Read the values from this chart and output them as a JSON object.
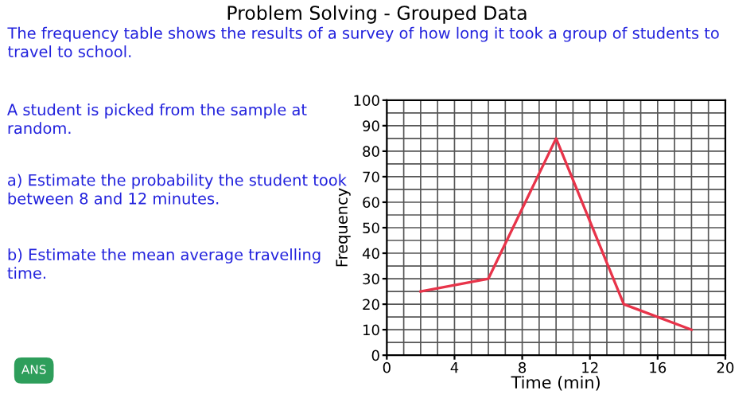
{
  "chart_data": {
    "type": "line",
    "title": "Problem Solving - Grouped Data",
    "xlabel": "Time (min)",
    "ylabel": "Frequency",
    "x": [
      2,
      6,
      10,
      14,
      18
    ],
    "series": [
      {
        "color": "#e8344a",
        "values": [
          25,
          30,
          85,
          20,
          10
        ]
      }
    ],
    "xlim": [
      0,
      20
    ],
    "xticks": [
      0,
      4,
      8,
      12,
      16,
      20
    ],
    "ylim": [
      0,
      100
    ],
    "yticks": [
      0,
      10,
      20,
      30,
      40,
      50,
      60,
      70,
      80,
      90,
      100
    ],
    "grid": true,
    "marker": "none",
    "line_style": "solid",
    "annotations": [
      "The frequency table shows the results of a survey of how long it took a group of students to travel to school.",
      "A student is picked from the sample at random.",
      "a) Estimate the probability the student took between 8 and 12 minutes.",
      "b) Estimate the mean average travelling time.",
      "ANS"
    ]
  }
}
